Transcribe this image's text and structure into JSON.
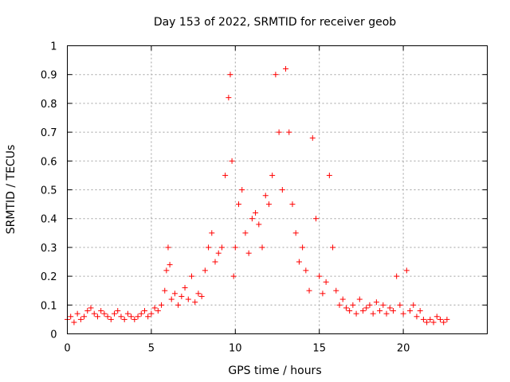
{
  "chart_data": {
    "type": "scatter",
    "title": "Day 153 of 2022, SRMTID for receiver geob",
    "xlabel": "GPS time / hours",
    "ylabel": "SRMTID / TECUs",
    "xlim": [
      0,
      25
    ],
    "ylim": [
      0,
      1
    ],
    "xticks": [
      0,
      5,
      10,
      15,
      20
    ],
    "xtick_labels": [
      "0",
      "5",
      "10",
      "15",
      "20"
    ],
    "yticks": [
      0,
      0.1,
      0.2,
      0.3,
      0.4,
      0.5,
      0.6,
      0.7,
      0.8,
      0.9,
      1
    ],
    "ytick_labels": [
      "0",
      "0.1",
      "0.2",
      "0.3",
      "0.4",
      "0.5",
      "0.6",
      "0.7",
      "0.8",
      "0.9",
      "1"
    ],
    "grid": true,
    "marker": "plus",
    "color": "#ff0000",
    "series": [
      {
        "name": "SRMTID",
        "x": [
          0.0,
          0.2,
          0.4,
          0.6,
          0.8,
          1.0,
          1.2,
          1.4,
          1.6,
          1.8,
          2.0,
          2.2,
          2.4,
          2.6,
          2.8,
          3.0,
          3.2,
          3.4,
          3.6,
          3.8,
          4.0,
          4.2,
          4.4,
          4.6,
          4.8,
          5.0,
          5.2,
          5.4,
          5.6,
          5.8,
          5.9,
          6.0,
          6.1,
          6.2,
          6.4,
          6.6,
          6.8,
          7.0,
          7.2,
          7.4,
          7.6,
          7.8,
          8.0,
          8.2,
          8.4,
          8.6,
          8.8,
          9.0,
          9.2,
          9.4,
          9.6,
          9.7,
          9.8,
          9.9,
          10.0,
          10.2,
          10.4,
          10.6,
          10.8,
          11.0,
          11.2,
          11.4,
          11.6,
          11.8,
          12.0,
          12.2,
          12.4,
          12.6,
          12.8,
          13.0,
          13.2,
          13.4,
          13.6,
          13.8,
          14.0,
          14.2,
          14.4,
          14.6,
          14.8,
          15.0,
          15.2,
          15.4,
          15.6,
          15.8,
          16.0,
          16.2,
          16.4,
          16.6,
          16.8,
          17.0,
          17.2,
          17.4,
          17.6,
          17.8,
          18.0,
          18.2,
          18.4,
          18.6,
          18.8,
          19.0,
          19.2,
          19.4,
          19.6,
          19.8,
          20.0,
          20.2,
          20.4,
          20.6,
          20.8,
          21.0,
          21.2,
          21.4,
          21.6,
          21.8,
          22.0,
          22.2,
          22.4,
          22.6
        ],
        "values": [
          0.05,
          0.06,
          0.04,
          0.07,
          0.05,
          0.06,
          0.08,
          0.09,
          0.07,
          0.06,
          0.08,
          0.07,
          0.06,
          0.05,
          0.07,
          0.08,
          0.06,
          0.05,
          0.07,
          0.06,
          0.05,
          0.06,
          0.07,
          0.08,
          0.06,
          0.07,
          0.09,
          0.08,
          0.1,
          0.15,
          0.22,
          0.3,
          0.24,
          0.12,
          0.14,
          0.1,
          0.13,
          0.16,
          0.12,
          0.2,
          0.11,
          0.14,
          0.13,
          0.22,
          0.3,
          0.35,
          0.25,
          0.28,
          0.3,
          0.55,
          0.82,
          0.9,
          0.6,
          0.2,
          0.3,
          0.45,
          0.5,
          0.35,
          0.28,
          0.4,
          0.42,
          0.38,
          0.3,
          0.48,
          0.45,
          0.55,
          0.9,
          0.7,
          0.5,
          0.92,
          0.7,
          0.45,
          0.35,
          0.25,
          0.3,
          0.22,
          0.15,
          0.68,
          0.4,
          0.2,
          0.14,
          0.18,
          0.55,
          0.3,
          0.15,
          0.1,
          0.12,
          0.09,
          0.08,
          0.1,
          0.07,
          0.12,
          0.08,
          0.09,
          0.1,
          0.07,
          0.11,
          0.08,
          0.1,
          0.07,
          0.09,
          0.08,
          0.2,
          0.1,
          0.07,
          0.22,
          0.08,
          0.1,
          0.06,
          0.08,
          0.05,
          0.04,
          0.05,
          0.04,
          0.06,
          0.05,
          0.04,
          0.05
        ]
      }
    ]
  }
}
